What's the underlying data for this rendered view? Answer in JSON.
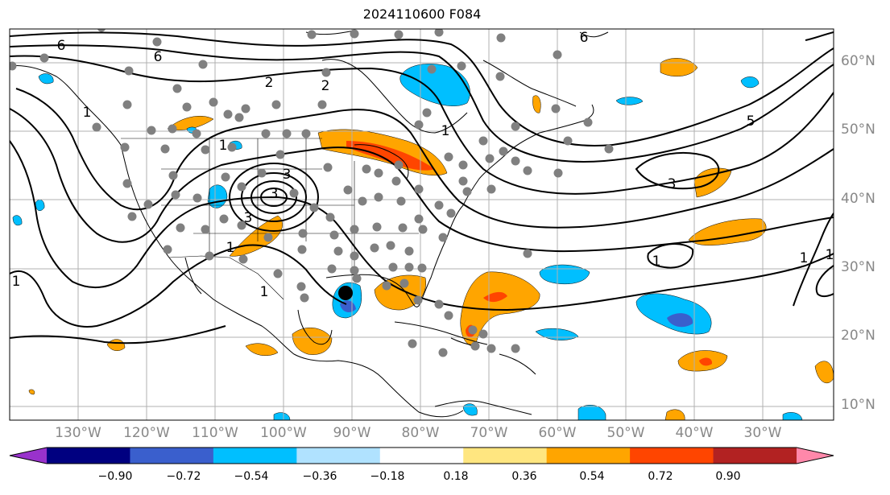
{
  "title": "2024110600 F084",
  "lat_labels": [
    "60°N",
    "50°N",
    "40°N",
    "30°N",
    "20°N",
    "10°N"
  ],
  "lon_labels": [
    "130°W",
    "120°W",
    "110°W",
    "100°W",
    "90°W",
    "80°W",
    "70°W",
    "60°W",
    "50°W",
    "40°W",
    "30°W"
  ],
  "colorbar": {
    "ticks": [
      "−0.90",
      "−0.72",
      "−0.54",
      "−0.36",
      "−0.18",
      "0.18",
      "0.36",
      "0.54",
      "0.72",
      "0.90"
    ],
    "colors": [
      "#9932CC",
      "#000080",
      "#3A5FCD",
      "#00BFFF",
      "#B0E2FF",
      "#FFFFFF",
      "#FFE680",
      "#FFA500",
      "#FF4500",
      "#B22222",
      "#FF88AA"
    ]
  },
  "contour_labels": [
    "6",
    "6",
    "6",
    "2",
    "2",
    "1",
    "1",
    "1",
    "1",
    "1",
    "1",
    "3",
    "3",
    "3",
    "5",
    "3",
    "1",
    "1",
    "1"
  ],
  "colors": {
    "grid": "#b0b0b0",
    "station": "#808080",
    "contour": "#000000",
    "storm": "#000000"
  }
}
